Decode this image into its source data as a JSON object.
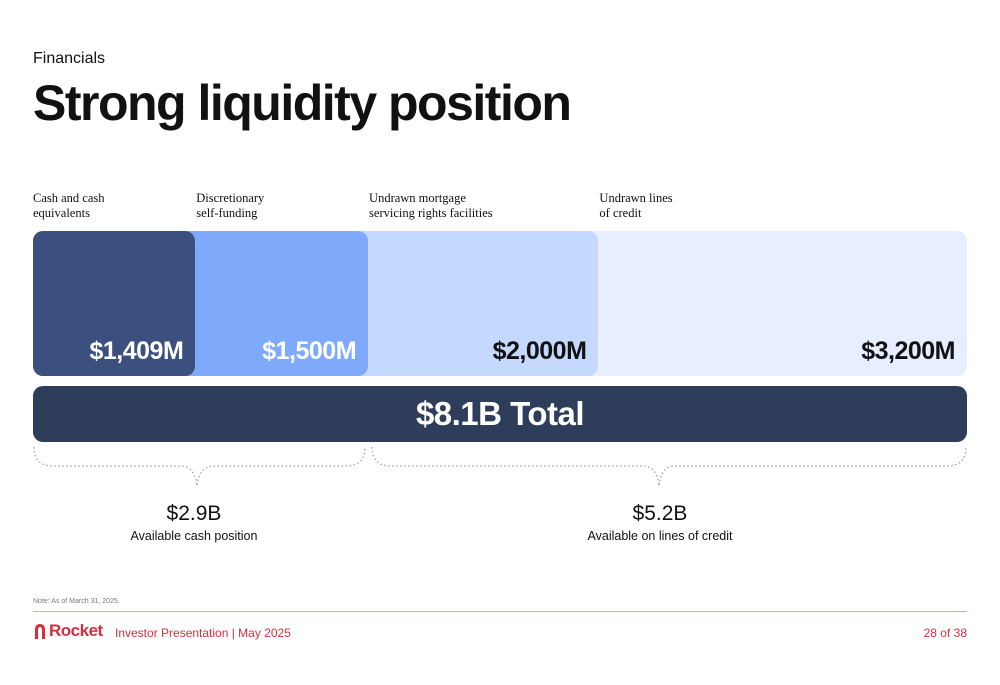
{
  "header": {
    "kicker": "Financials",
    "title": "Strong liquidity position"
  },
  "chart_data": {
    "type": "bar",
    "orientation": "horizontal-stacked",
    "unit": "$M",
    "categories": [
      "Cash and cash\nequivalents",
      "Discretionary\nself-funding",
      "Undrawn mortgage\nservicing rights facilities",
      "Undrawn lines\nof credit"
    ],
    "values": [
      1409,
      1500,
      2000,
      3200
    ],
    "value_labels": [
      "$1,409M",
      "$1,500M",
      "$2,000M",
      "$3,200M"
    ],
    "colors": [
      "#3c5080",
      "#7fa9fb",
      "#c5d8fd",
      "#e6eeff"
    ],
    "label_colors": [
      "#ffffff",
      "#ffffff",
      "#111111",
      "#111111"
    ],
    "total_label": "$8.1B Total",
    "total_color": "#2e3d5a",
    "groups": [
      {
        "value": "$2.9B",
        "description": "Available cash position"
      },
      {
        "value": "$5.2B",
        "description": "Available on lines of credit"
      }
    ]
  },
  "footer": {
    "note": "Note: As of March 31, 2025.",
    "brand": "Rocket",
    "presentation": "Investor Presentation | May 2025",
    "page": "28 of 38",
    "accent_color": "#d32f3f"
  }
}
